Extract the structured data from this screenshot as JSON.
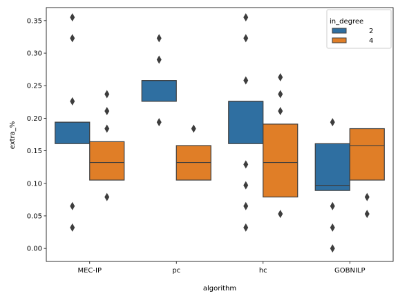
{
  "chart_data": {
    "type": "boxen",
    "xlabel": "algorithm",
    "ylabel": "extra_%",
    "ylim": [
      -0.02,
      0.37
    ],
    "yticks": [
      "0.00",
      "0.05",
      "0.10",
      "0.15",
      "0.20",
      "0.25",
      "0.30",
      "0.35"
    ],
    "categories": [
      "MEC-IP",
      "pc",
      "hc",
      "GOBNILP"
    ],
    "legend": {
      "title": "in_degree",
      "position": "top-right"
    },
    "grid": false,
    "series": [
      {
        "name": "2",
        "color": "#2f6fa1",
        "groups": [
          {
            "boxes": [
              [
                0.161,
                0.194
              ]
            ],
            "median": 0.194,
            "outliers": [
              0.355,
              0.323,
              0.226,
              0.065,
              0.032
            ]
          },
          {
            "boxes": [
              [
                0.226,
                0.258
              ]
            ],
            "median": 0.258,
            "outliers": [
              0.323,
              0.29,
              0.194
            ]
          },
          {
            "boxes": [
              [
                0.161,
                0.226
              ]
            ],
            "median": 0.226,
            "outliers": [
              0.355,
              0.323,
              0.258,
              0.129,
              0.097,
              0.065,
              0.032
            ]
          },
          {
            "boxes": [
              [
                0.089,
                0.161
              ]
            ],
            "median": 0.097,
            "outliers": [
              0.194,
              0.065,
              0.032,
              0.0
            ]
          }
        ]
      },
      {
        "name": "4",
        "color": "#e07e27",
        "groups": [
          {
            "boxes": [
              [
                0.105,
                0.164
              ]
            ],
            "median": 0.132,
            "outliers": [
              0.237,
              0.211,
              0.184,
              0.079
            ]
          },
          {
            "boxes": [
              [
                0.105,
                0.158
              ]
            ],
            "median": 0.132,
            "outliers": [
              0.184
            ]
          },
          {
            "boxes": [
              [
                0.079,
                0.191
              ]
            ],
            "median": 0.132,
            "outliers": [
              0.263,
              0.237,
              0.211,
              0.053
            ]
          },
          {
            "boxes": [
              [
                0.105,
                0.184
              ]
            ],
            "median": 0.158,
            "outliers": [
              0.079,
              0.053
            ]
          }
        ]
      }
    ]
  }
}
